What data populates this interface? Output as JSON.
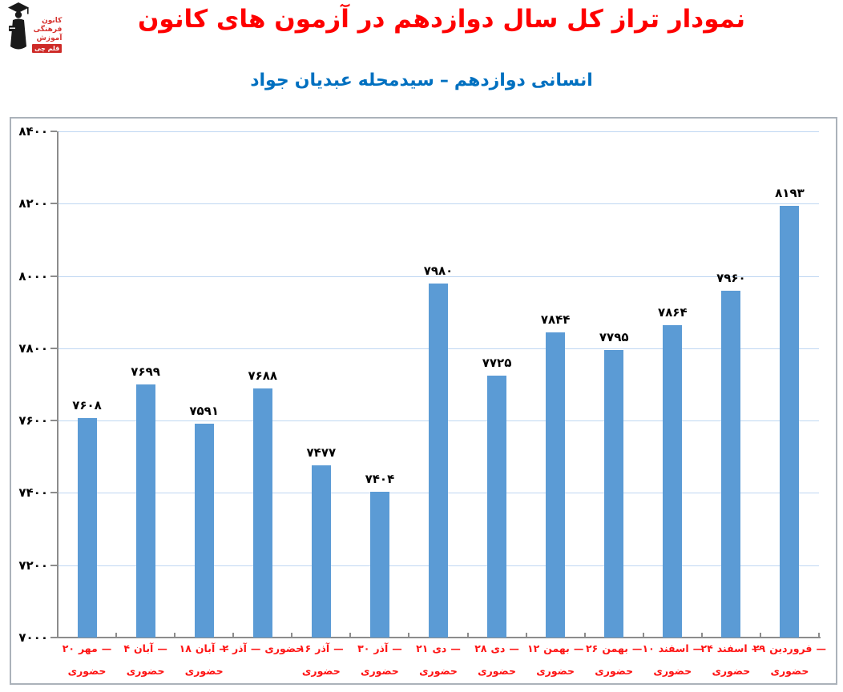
{
  "header": {
    "title": "نمودار تراز کل سال دوازدهم در آزمون های کانون",
    "subtitle": "جواد عبدیان سیدمحله – دوازدهم انسانی"
  },
  "logo": {
    "org_lines": [
      "کانون",
      "فرهنگی",
      "آموزش"
    ],
    "badge": "قلم چی"
  },
  "chart_data": {
    "type": "bar",
    "title": "نمودار تراز کل سال دوازدهم در آزمون های کانون",
    "subtitle": "جواد عبدیان سیدمحله – دوازدهم انسانی",
    "xlabel": "",
    "ylabel": "",
    "ylim": [
      7000,
      8400
    ],
    "y_tick_step": 200,
    "y_tick_labels": [
      "۸۴۰۰",
      "۸۲۰۰",
      "۸۰۰۰",
      "۷۸۰۰",
      "۷۶۰۰",
      "۷۴۰۰",
      "۷۲۰۰",
      "۷۰۰۰"
    ],
    "grid": true,
    "legend": false,
    "categories": [
      "۲۰ مهر — حضوری",
      "۴ آبان — حضوری",
      "۱۸ آبان — حضوری",
      "۲ آذر — حضوری",
      "۱۶ آذر — حضوری",
      "۳۰ آذر — حضوری",
      "۲۱ دی — حضوری",
      "۲۸ دی — حضوری",
      "۱۲ بهمن — حضوری",
      "۲۶ بهمن — حضوری",
      "۱۰ اسفند — حضوری",
      "۲۴ اسفند — حضوری",
      "۲۹ فروردین — حضوری"
    ],
    "x_tick_lines": [
      {
        "line1": "۲۰ مهر —",
        "line2": "حضوری"
      },
      {
        "line1": "۴ آبان —",
        "line2": "حضوری"
      },
      {
        "line1": "۱۸ آبان —",
        "line2": "حضوری"
      },
      {
        "line1": "۲ آذر — حضوری",
        "line2": ""
      },
      {
        "line1": "۱۶ آذر —",
        "line2": "حضوری"
      },
      {
        "line1": "۳۰ آذر —",
        "line2": "حضوری"
      },
      {
        "line1": "۲۱ دی —",
        "line2": "حضوری"
      },
      {
        "line1": "۲۸ دی —",
        "line2": "حضوری"
      },
      {
        "line1": "۱۲ بهمن —",
        "line2": "حضوری"
      },
      {
        "line1": "۲۶ بهمن —",
        "line2": "حضوری"
      },
      {
        "line1": "۱۰ اسفند —",
        "line2": "حضوری"
      },
      {
        "line1": "۲۴ اسفند —",
        "line2": "حضوری"
      },
      {
        "line1": "۲۹ فروردین —",
        "line2": "حضوری"
      }
    ],
    "values": [
      7608,
      7699,
      7591,
      7688,
      7477,
      7404,
      7980,
      7725,
      7844,
      7795,
      7864,
      7960,
      8193
    ],
    "value_labels": [
      "۷۶۰۸",
      "۷۶۹۹",
      "۷۵۹۱",
      "۷۶۸۸",
      "۷۴۷۷",
      "۷۴۰۴",
      "۷۹۸۰",
      "۷۷۲۵",
      "۷۸۴۴",
      "۷۷۹۵",
      "۷۸۶۴",
      "۷۹۶۰",
      "۸۱۹۳"
    ],
    "colors": {
      "bar": "#5b9bd5",
      "grid": "#bfd7f2",
      "axis": "#8c8c8c",
      "title": "#fe0000",
      "subtitle": "#0070c0",
      "x_label": "#fe1414",
      "y_label": "#000000",
      "value_label": "#000000",
      "frame_border": "#abb2ba"
    }
  }
}
